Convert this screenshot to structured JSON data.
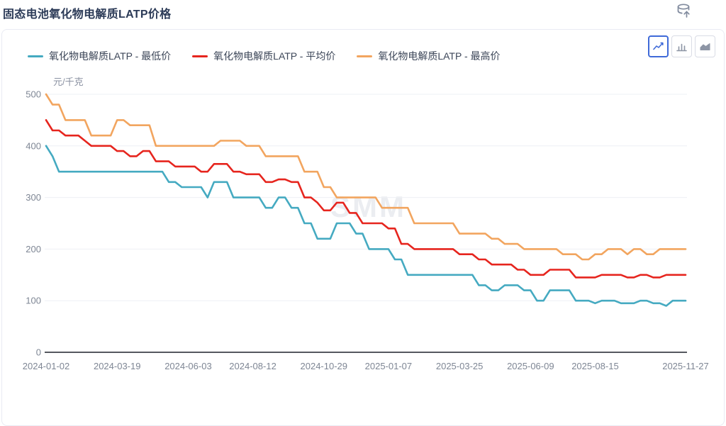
{
  "page": {
    "title": "固态电池氧化物电解质LATP价格"
  },
  "header": {
    "export_icon": "database-export"
  },
  "chart_toolbar": {
    "buttons": [
      {
        "name": "line-chart",
        "selected": true
      },
      {
        "name": "bar-chart",
        "selected": false
      },
      {
        "name": "area-chart",
        "selected": false
      }
    ]
  },
  "legend": {
    "items": [
      {
        "label": "氧化物电解质LATP - 最低价",
        "color": "#45AAC1"
      },
      {
        "label": "氧化物电解质LATP - 平均价",
        "color": "#E6251E"
      },
      {
        "label": "氧化物电解质LATP - 最高价",
        "color": "#F2A55F"
      }
    ]
  },
  "watermark": "SMM",
  "chart_data": {
    "type": "line",
    "title": "固态电池氧化物电解质LATP价格",
    "xlabel": "",
    "ylabel": "元/千克",
    "ylim": [
      0,
      500
    ],
    "y_ticks": [
      0,
      100,
      200,
      300,
      400,
      500
    ],
    "grid": true,
    "legend_position": "top-left",
    "x_range": [
      "2024-01-02",
      "2025-11-27"
    ],
    "x_tick_labels": [
      "2024-01-02",
      "2024-03-19",
      "2024-06-03",
      "2024-08-12",
      "2024-10-29",
      "2025-01-07",
      "2025-03-25",
      "2025-06-09",
      "2025-08-15",
      "2025-11-27"
    ],
    "x_tick_weeks": [
      0,
      11,
      22,
      32,
      43,
      53,
      64,
      75,
      85,
      99
    ],
    "series": [
      {
        "name": "氧化物电解质LATP - 最低价",
        "color": "#45AAC1",
        "values": [
          400,
          380,
          350,
          350,
          350,
          350,
          350,
          350,
          350,
          350,
          350,
          350,
          350,
          350,
          350,
          350,
          350,
          350,
          350,
          330,
          330,
          320,
          320,
          320,
          320,
          300,
          330,
          330,
          330,
          300,
          300,
          300,
          300,
          300,
          280,
          280,
          300,
          300,
          280,
          280,
          250,
          250,
          220,
          220,
          220,
          250,
          250,
          250,
          230,
          230,
          200,
          200,
          200,
          200,
          180,
          180,
          150,
          150,
          150,
          150,
          150,
          150,
          150,
          150,
          150,
          150,
          150,
          130,
          130,
          120,
          120,
          130,
          130,
          130,
          120,
          120,
          100,
          100,
          120,
          120,
          120,
          120,
          100,
          100,
          100,
          95,
          100,
          100,
          100,
          95,
          95,
          95,
          100,
          100,
          95,
          95,
          90,
          100,
          100,
          100
        ]
      },
      {
        "name": "氧化物电解质LATP - 平均价",
        "color": "#E6251E",
        "values": [
          450,
          430,
          430,
          420,
          420,
          420,
          410,
          400,
          400,
          400,
          400,
          390,
          390,
          380,
          380,
          390,
          390,
          370,
          370,
          370,
          360,
          360,
          360,
          360,
          350,
          350,
          365,
          365,
          365,
          350,
          350,
          345,
          345,
          345,
          330,
          330,
          335,
          335,
          330,
          330,
          300,
          300,
          290,
          275,
          275,
          290,
          290,
          270,
          270,
          250,
          250,
          250,
          250,
          240,
          240,
          210,
          210,
          200,
          200,
          200,
          200,
          200,
          200,
          200,
          190,
          190,
          190,
          180,
          180,
          170,
          170,
          170,
          170,
          160,
          160,
          150,
          150,
          150,
          160,
          160,
          160,
          160,
          145,
          145,
          145,
          145,
          150,
          150,
          150,
          150,
          145,
          145,
          150,
          150,
          145,
          145,
          150,
          150,
          150,
          150
        ]
      },
      {
        "name": "氧化物电解质LATP - 最高价",
        "color": "#F2A55F",
        "values": [
          500,
          480,
          480,
          450,
          450,
          450,
          450,
          420,
          420,
          420,
          420,
          450,
          450,
          440,
          440,
          440,
          440,
          400,
          400,
          400,
          400,
          400,
          400,
          400,
          400,
          400,
          400,
          410,
          410,
          410,
          410,
          400,
          400,
          400,
          380,
          380,
          380,
          380,
          380,
          380,
          350,
          350,
          350,
          320,
          320,
          300,
          300,
          300,
          300,
          300,
          300,
          300,
          280,
          280,
          280,
          280,
          280,
          250,
          250,
          250,
          250,
          250,
          250,
          250,
          230,
          230,
          230,
          230,
          230,
          220,
          220,
          210,
          210,
          210,
          200,
          200,
          200,
          200,
          200,
          200,
          190,
          190,
          190,
          180,
          180,
          190,
          190,
          200,
          200,
          200,
          190,
          200,
          200,
          190,
          190,
          200,
          200,
          200,
          200,
          200
        ]
      }
    ]
  }
}
